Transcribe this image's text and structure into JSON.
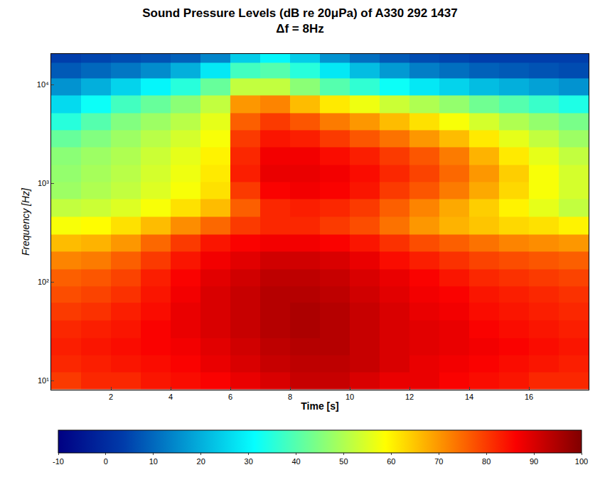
{
  "chart_data": {
    "type": "heatmap",
    "title": "Sound Pressure Levels (dB re 20μPa) of A330 292 1437",
    "subtitle": "Δf = 8Hz",
    "x_label": "Time [s]",
    "y_label": "Frequency [Hz]",
    "log": "y",
    "color": "Jet",
    "xlim": [
      0,
      18
    ],
    "xticks": [
      2,
      4,
      6,
      8,
      10,
      12,
      14,
      16
    ],
    "ylim": [
      8.1,
      20400
    ],
    "yticks": [
      {
        "value": 10,
        "label": "10¹"
      },
      {
        "value": 100,
        "label": "10²"
      },
      {
        "value": 1000,
        "label": "10³"
      },
      {
        "value": 10000,
        "label": "10⁴"
      }
    ],
    "colorbar_range": [
      -10,
      100
    ],
    "colorbar_ticks": [
      -10,
      0,
      10,
      20,
      30,
      40,
      50,
      60,
      70,
      80,
      90,
      100
    ],
    "x": [
      0.5,
      1.5,
      2.5,
      3.5,
      4.5,
      5.5,
      6.5,
      7.5,
      8.5,
      9.5,
      10.5,
      11.5,
      12.5,
      13.5,
      14.5,
      15.5,
      16.5,
      17.5
    ],
    "y": [
      10,
      15,
      22,
      33,
      50,
      75,
      110,
      165,
      250,
      370,
      560,
      840,
      1250,
      1900,
      2800,
      4200,
      6300,
      9500,
      14000,
      20000
    ],
    "z": [
      [
        80,
        82,
        82,
        84,
        85,
        86,
        88,
        90,
        92,
        92,
        90,
        88,
        88,
        86,
        85,
        84,
        82,
        82
      ],
      [
        82,
        83,
        84,
        85,
        86,
        88,
        90,
        92,
        93,
        93,
        92,
        90,
        88,
        87,
        86,
        85,
        84,
        83
      ],
      [
        83,
        84,
        85,
        86,
        87,
        89,
        91,
        93,
        94,
        94,
        92,
        90,
        89,
        88,
        87,
        86,
        85,
        84
      ],
      [
        82,
        83,
        84,
        86,
        88,
        90,
        92,
        94,
        95,
        94,
        92,
        90,
        89,
        88,
        86,
        85,
        84,
        83
      ],
      [
        80,
        81,
        83,
        85,
        88,
        90,
        92,
        94,
        95,
        94,
        92,
        90,
        88,
        87,
        85,
        84,
        83,
        82
      ],
      [
        78,
        79,
        81,
        84,
        87,
        90,
        92,
        94,
        94,
        93,
        91,
        89,
        87,
        86,
        84,
        83,
        82,
        81
      ],
      [
        76,
        77,
        79,
        83,
        86,
        89,
        91,
        93,
        93,
        92,
        90,
        88,
        86,
        84,
        82,
        81,
        80,
        79
      ],
      [
        72,
        73,
        76,
        80,
        84,
        87,
        89,
        91,
        91,
        90,
        88,
        85,
        83,
        81,
        79,
        78,
        77,
        76
      ],
      [
        66,
        67,
        70,
        75,
        80,
        84,
        86,
        87,
        87,
        86,
        84,
        81,
        78,
        76,
        74,
        72,
        71,
        70
      ],
      [
        58,
        59,
        62,
        66,
        71,
        75,
        80,
        82,
        82,
        80,
        78,
        74,
        70,
        67,
        65,
        63,
        62,
        60
      ],
      [
        52,
        53,
        55,
        58,
        62,
        66,
        76,
        82,
        83,
        82,
        80,
        76,
        72,
        68,
        64,
        60,
        56,
        52
      ],
      [
        48,
        50,
        52,
        55,
        58,
        62,
        80,
        86,
        87,
        86,
        84,
        80,
        77,
        73,
        68,
        63,
        58,
        54
      ],
      [
        47,
        49,
        51,
        54,
        57,
        61,
        83,
        88,
        88,
        87,
        85,
        82,
        79,
        75,
        70,
        64,
        58,
        54
      ],
      [
        46,
        48,
        50,
        53,
        56,
        60,
        82,
        87,
        87,
        85,
        83,
        80,
        77,
        73,
        67,
        61,
        56,
        52
      ],
      [
        42,
        45,
        48,
        51,
        54,
        58,
        80,
        84,
        83,
        80,
        77,
        74,
        70,
        66,
        61,
        56,
        52,
        48
      ],
      [
        35,
        40,
        45,
        48,
        51,
        56,
        76,
        80,
        77,
        73,
        70,
        66,
        62,
        58,
        54,
        50,
        47,
        44
      ],
      [
        26,
        32,
        38,
        42,
        46,
        52,
        70,
        72,
        66,
        61,
        57,
        53,
        50,
        47,
        43,
        40,
        37,
        34
      ],
      [
        16,
        20,
        25,
        30,
        35,
        42,
        52,
        52,
        46,
        40,
        36,
        32,
        28,
        25,
        22,
        20,
        18,
        16
      ],
      [
        8,
        10,
        12,
        15,
        20,
        28,
        38,
        40,
        35,
        28,
        22,
        17,
        13,
        11,
        9,
        8,
        7,
        6
      ],
      [
        4,
        5,
        6,
        7,
        9,
        14,
        24,
        30,
        24,
        16,
        11,
        8,
        6,
        5,
        4,
        4,
        4,
        4
      ]
    ]
  }
}
